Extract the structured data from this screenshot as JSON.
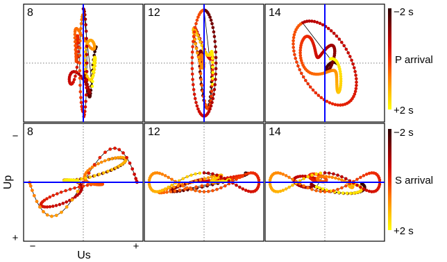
{
  "chart_data": {
    "type": "scatter",
    "description_rows": [
      "P arrival",
      "S arrival"
    ],
    "axes": {
      "ylabel": "Up",
      "xlabel": "Us",
      "y_tick_top": "−",
      "y_tick_bottom": "+",
      "x_tick_left": "−",
      "x_tick_right": "+",
      "xlim": [
        -1,
        1
      ],
      "ylim": [
        -1,
        1
      ]
    },
    "colorbars": [
      {
        "label": "P arrival",
        "top_label": "−2 s",
        "bottom_label": "+2 s",
        "range": [
          -2,
          2
        ]
      },
      {
        "label": "S arrival",
        "top_label": "−2 s",
        "bottom_label": "+2 s",
        "range": [
          -2,
          2
        ]
      }
    ],
    "panels": [
      {
        "row": 0,
        "label": "8",
        "ref_line": "vertical",
        "xscale": 0.28,
        "yscale": 0.72,
        "seed": 11,
        "extra": "thin"
      },
      {
        "row": 0,
        "label": "12",
        "ref_line": "vertical",
        "xscale": 0.22,
        "yscale": 0.8,
        "seed": 23,
        "extra": "ellipse_v"
      },
      {
        "row": 0,
        "label": "14",
        "ref_line": "vertical",
        "xscale": 0.45,
        "yscale": 0.55,
        "seed": 37,
        "extra": "ellipse_tilt"
      },
      {
        "row": 1,
        "label": "8",
        "ref_line": "horizontal",
        "xscale": 0.78,
        "yscale": 0.55,
        "seed": 41,
        "extra": "wide"
      },
      {
        "row": 1,
        "label": "12",
        "ref_line": "horizontal",
        "xscale": 0.85,
        "yscale": 0.18,
        "seed": 53,
        "extra": "flat"
      },
      {
        "row": 1,
        "label": "14",
        "ref_line": "horizontal",
        "xscale": 0.85,
        "yscale": 0.2,
        "seed": 67,
        "extra": "flat"
      }
    ],
    "colors": {
      "ref_line": "#0000ff",
      "trace": "#000000",
      "grid": "#777777",
      "colormap": [
        "#ffff00",
        "#ffc000",
        "#ff7a00",
        "#ef2a00",
        "#c00000",
        "#7a0000",
        "#2a0000"
      ]
    }
  }
}
